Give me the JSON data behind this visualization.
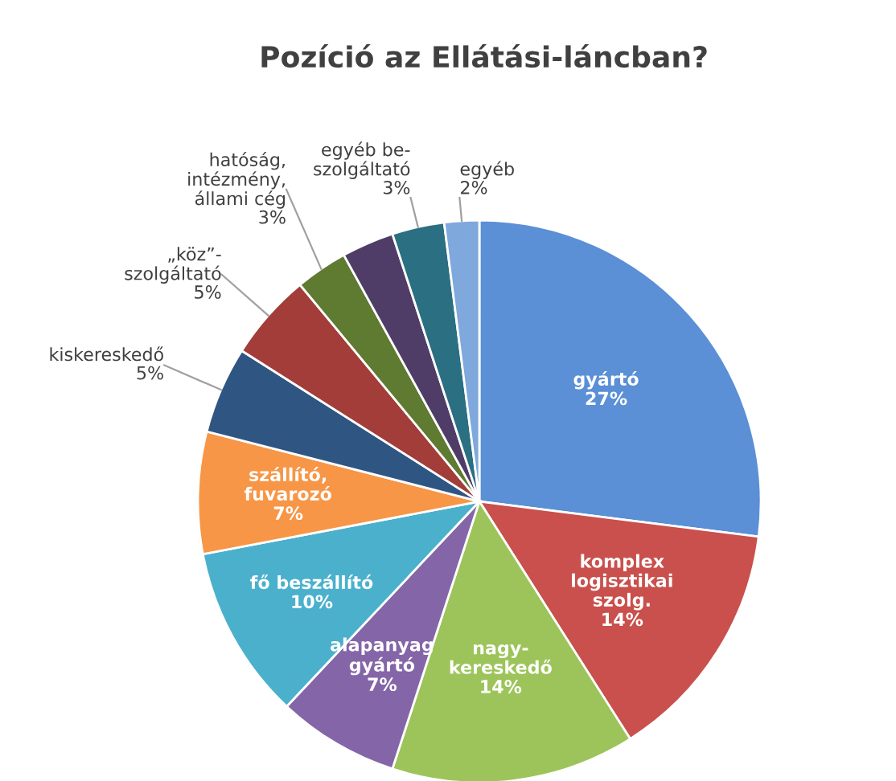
{
  "chart_data": {
    "type": "pie",
    "title": "Pozíció az Ellátási-láncban?",
    "categories": [
      "gyártó",
      "komplex\nlogisztikai\nszolg.",
      "nagy-\nkereskedő",
      "alapanyag\ngyártó",
      "fő beszállító",
      "szállító,\nfuvarozó",
      "kiskereskedő",
      "„köz”-\nszolgáltató",
      "hatóság,\nintézmény,\nállami cég",
      null,
      "egyéb be-\nszolgáltató",
      "egyéb"
    ],
    "values": [
      27,
      14,
      14,
      7,
      10,
      7,
      5,
      5,
      3,
      3,
      3,
      2
    ],
    "value_labels": [
      "27%",
      "14%",
      "14%",
      "7%",
      "10%",
      "7%",
      "5%",
      "5%",
      "3%",
      null,
      "3%",
      "2%"
    ],
    "colors": [
      "#5b8fd6",
      "#c9504c",
      "#9cc45a",
      "#8466a8",
      "#4bb0cc",
      "#f79646",
      "#2f5583",
      "#a33d39",
      "#5f7a31",
      "#4f3d68",
      "#2a6f82",
      "#7fa8dc"
    ]
  }
}
